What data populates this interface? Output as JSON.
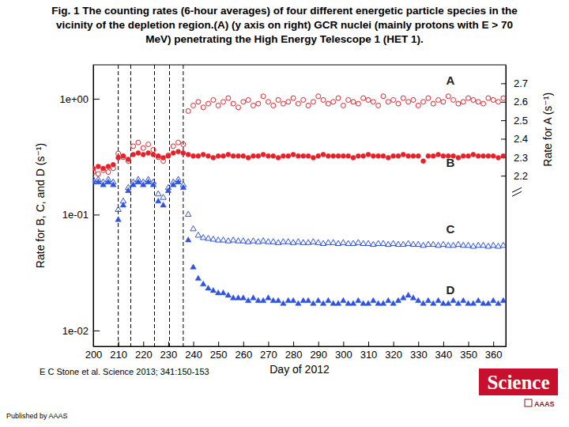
{
  "chart_data": {
    "type": "scatter",
    "title": [
      "Fig. 1 The counting rates (6-hour averages) of four different energetic particle species in the",
      "vicinity of the depletion region.(A) (y axis on right) GCR nuclei (mainly protons with E > 70",
      "MeV) penetrating the High Energy Telescope 1 (HET 1)."
    ],
    "xlabel": "Day of 2012",
    "ylabel": "Rate for B, C, and D (s⁻¹)",
    "y2label": "Rate for A (s⁻¹)",
    "citation": "E C Stone et al. Science 2013; 341:150-153",
    "publisher": "Published by AAAS",
    "logo_text": "Science",
    "logo_subtext": "AAAS",
    "log": "y",
    "xlim": [
      200,
      365
    ],
    "xticks": [
      200,
      210,
      220,
      230,
      240,
      250,
      260,
      270,
      280,
      290,
      300,
      310,
      320,
      330,
      340,
      350,
      360
    ],
    "ylim": [
      0.0073,
      1.96
    ],
    "yticks": [
      {
        "value": 0.01,
        "label": "1e-02"
      },
      {
        "value": 0.1,
        "label": "1e-01"
      },
      {
        "value": 1,
        "label": "1e+00"
      }
    ],
    "y2lim": [
      1.277,
      2.8
    ],
    "y2ticks": [
      2.2,
      2.3,
      2.4,
      2.5,
      2.6,
      2.7
    ],
    "vlines": [
      210,
      215,
      224.5,
      230.5,
      236
    ],
    "x": [
      200,
      202,
      204,
      206,
      208,
      210,
      212,
      214,
      216,
      218,
      220,
      222,
      224,
      226,
      228,
      230,
      232,
      234,
      236,
      238,
      240,
      242,
      244,
      246,
      248,
      250,
      252,
      254,
      256,
      258,
      260,
      262,
      264,
      266,
      268,
      270,
      272,
      274,
      276,
      278,
      280,
      282,
      284,
      286,
      288,
      290,
      292,
      294,
      296,
      298,
      300,
      302,
      304,
      306,
      308,
      310,
      312,
      314,
      316,
      318,
      320,
      322,
      324,
      326,
      328,
      330,
      332,
      334,
      336,
      338,
      340,
      342,
      344,
      346,
      348,
      350,
      352,
      354,
      356,
      358,
      360,
      362,
      364
    ],
    "series": [
      {
        "name": "A",
        "color": "#e8202a",
        "marker": "open-circle",
        "axis": "y2",
        "values": [
          2.22,
          2.21,
          2.23,
          2.22,
          2.24,
          2.32,
          2.3,
          2.28,
          2.36,
          2.38,
          2.35,
          2.37,
          2.34,
          2.3,
          2.28,
          2.31,
          2.36,
          2.38,
          2.37,
          2.55,
          2.58,
          2.6,
          2.57,
          2.59,
          2.61,
          2.58,
          2.6,
          2.62,
          2.59,
          2.57,
          2.6,
          2.61,
          2.58,
          2.59,
          2.63,
          2.6,
          2.58,
          2.61,
          2.59,
          2.6,
          2.62,
          2.59,
          2.61,
          2.58,
          2.6,
          2.63,
          2.61,
          2.59,
          2.6,
          2.62,
          2.58,
          2.61,
          2.6,
          2.59,
          2.62,
          2.61,
          2.6,
          2.58,
          2.63,
          2.6,
          2.61,
          2.59,
          2.62,
          2.6,
          2.61,
          2.58,
          2.6,
          2.62,
          2.59,
          2.61,
          2.6,
          2.63,
          2.61,
          2.59,
          2.6,
          2.62,
          2.61,
          2.6,
          2.59,
          2.62,
          2.61,
          2.6,
          2.62
        ]
      },
      {
        "name": "B",
        "color": "#e8202a",
        "marker": "circle",
        "values": [
          0.25,
          0.26,
          0.25,
          0.26,
          0.27,
          0.31,
          0.32,
          0.3,
          0.33,
          0.34,
          0.33,
          0.34,
          0.33,
          0.32,
          0.31,
          0.32,
          0.34,
          0.35,
          0.34,
          0.33,
          0.32,
          0.32,
          0.33,
          0.32,
          0.31,
          0.32,
          0.32,
          0.33,
          0.32,
          0.32,
          0.32,
          0.31,
          0.32,
          0.32,
          0.33,
          0.32,
          0.32,
          0.31,
          0.32,
          0.32,
          0.33,
          0.32,
          0.32,
          0.32,
          0.31,
          0.32,
          0.33,
          0.32,
          0.32,
          0.32,
          0.32,
          0.32,
          0.31,
          0.32,
          0.32,
          0.33,
          0.32,
          0.32,
          0.32,
          0.31,
          0.32,
          0.32,
          0.33,
          0.32,
          0.32,
          0.32,
          0.29,
          0.32,
          0.32,
          0.33,
          0.32,
          0.32,
          0.32,
          0.31,
          0.32,
          0.32,
          0.33,
          0.32,
          0.32,
          0.32,
          0.32,
          0.31,
          0.32
        ]
      },
      {
        "name": "C",
        "color": "#2f52e0",
        "marker": "open-triangle",
        "values": [
          0.2,
          0.2,
          0.19,
          0.2,
          0.19,
          0.11,
          0.13,
          0.17,
          0.19,
          0.2,
          0.19,
          0.2,
          0.19,
          0.15,
          0.14,
          0.17,
          0.19,
          0.2,
          0.18,
          0.1,
          0.075,
          0.066,
          0.063,
          0.062,
          0.061,
          0.06,
          0.06,
          0.059,
          0.06,
          0.059,
          0.059,
          0.058,
          0.059,
          0.058,
          0.059,
          0.058,
          0.058,
          0.057,
          0.058,
          0.058,
          0.057,
          0.058,
          0.057,
          0.057,
          0.058,
          0.057,
          0.056,
          0.057,
          0.057,
          0.056,
          0.057,
          0.056,
          0.056,
          0.057,
          0.056,
          0.056,
          0.055,
          0.056,
          0.056,
          0.055,
          0.056,
          0.055,
          0.055,
          0.056,
          0.055,
          0.055,
          0.054,
          0.055,
          0.055,
          0.054,
          0.055,
          0.054,
          0.054,
          0.055,
          0.054,
          0.054,
          0.053,
          0.054,
          0.054,
          0.053,
          0.054,
          0.053,
          0.054
        ]
      },
      {
        "name": "D",
        "color": "#2f52e0",
        "marker": "triangle",
        "values": [
          0.19,
          0.19,
          0.18,
          0.19,
          0.18,
          0.09,
          0.12,
          0.16,
          0.18,
          0.19,
          0.18,
          0.19,
          0.18,
          0.13,
          0.12,
          0.16,
          0.18,
          0.19,
          0.17,
          0.06,
          0.035,
          0.028,
          0.025,
          0.023,
          0.022,
          0.021,
          0.021,
          0.02,
          0.019,
          0.019,
          0.019,
          0.018,
          0.019,
          0.018,
          0.018,
          0.019,
          0.018,
          0.018,
          0.017,
          0.018,
          0.018,
          0.017,
          0.018,
          0.018,
          0.017,
          0.018,
          0.017,
          0.018,
          0.017,
          0.017,
          0.018,
          0.017,
          0.017,
          0.018,
          0.017,
          0.017,
          0.018,
          0.017,
          0.017,
          0.018,
          0.017,
          0.018,
          0.019,
          0.02,
          0.019,
          0.018,
          0.017,
          0.018,
          0.017,
          0.018,
          0.017,
          0.017,
          0.018,
          0.017,
          0.018,
          0.017,
          0.017,
          0.018,
          0.017,
          0.017,
          0.018,
          0.017,
          0.018
        ]
      }
    ]
  }
}
